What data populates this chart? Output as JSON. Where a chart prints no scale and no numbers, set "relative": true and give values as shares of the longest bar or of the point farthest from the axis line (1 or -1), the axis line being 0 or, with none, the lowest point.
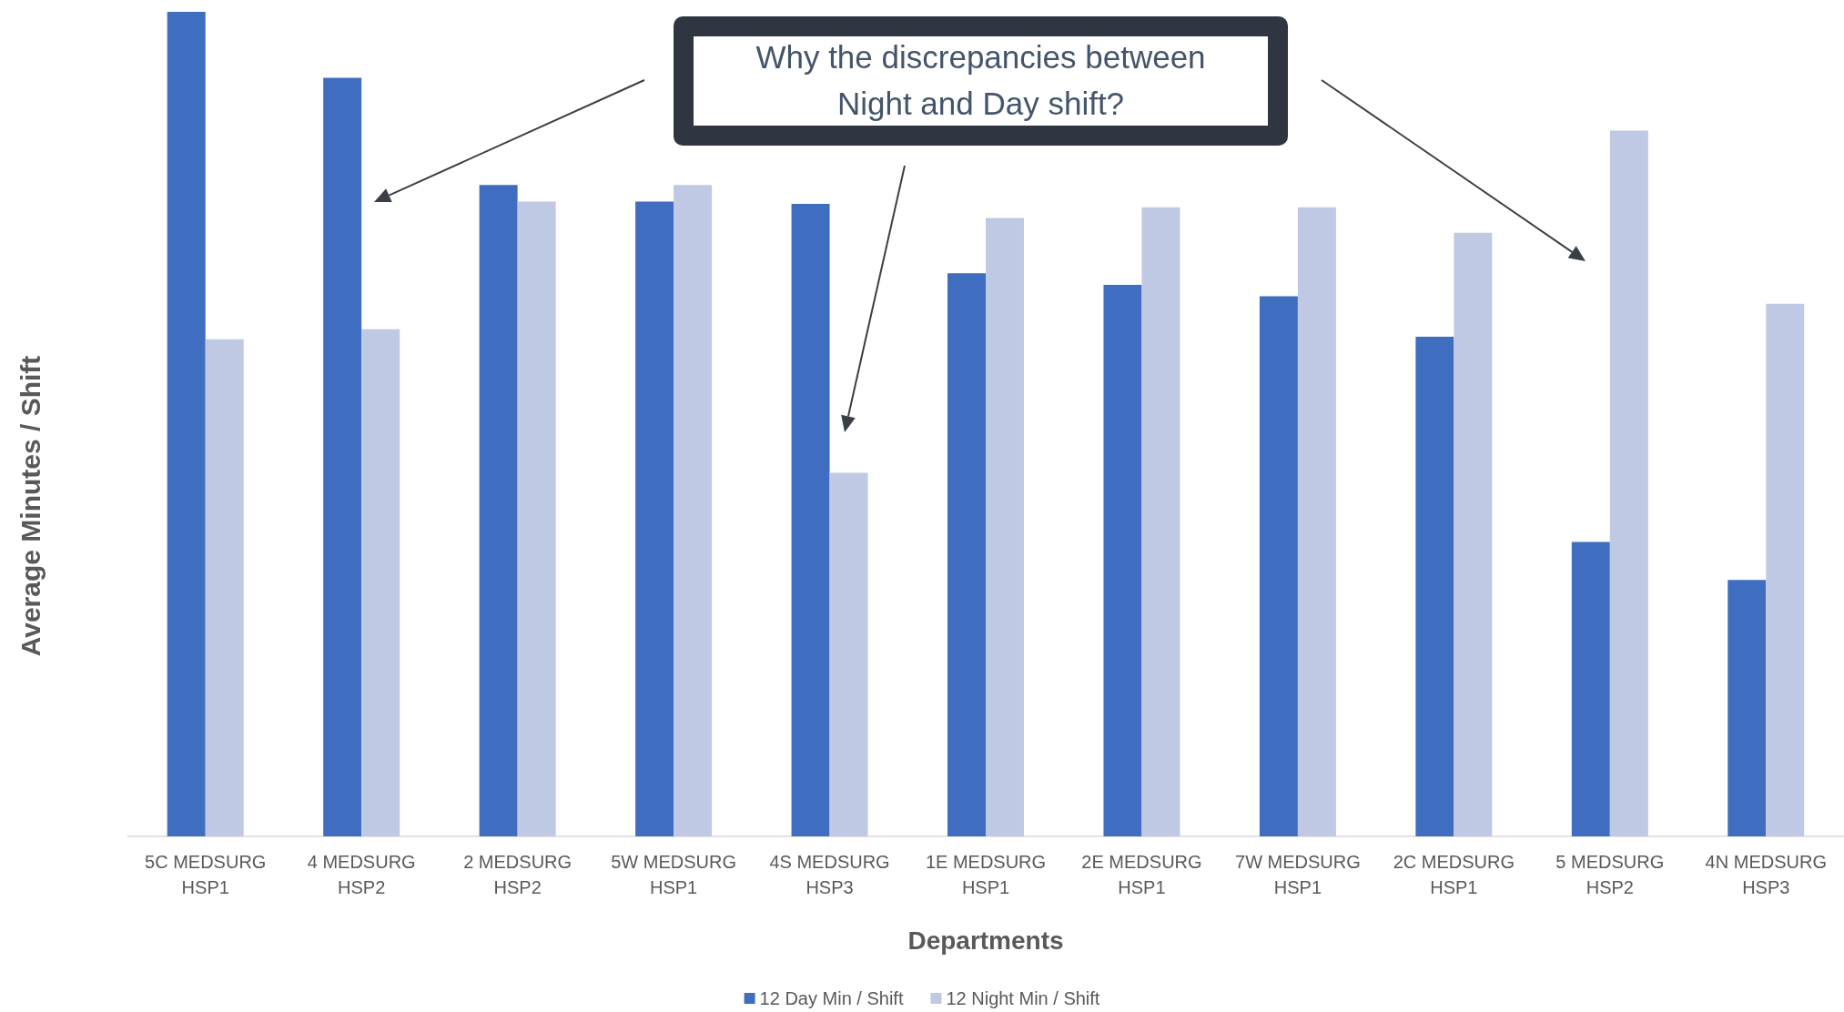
{
  "chart_data": {
    "type": "bar",
    "relative": true,
    "xlabel": "Departments",
    "ylabel": "Average Minutes / Shift",
    "categories": [
      "5C MEDSURG\nHSP1",
      "4 MEDSURG\nHSP2",
      "2 MEDSURG\nHSP2",
      "5W MEDSURG\nHSP1",
      "4S MEDSURG\nHSP3",
      "1E MEDSURG\nHSP1",
      "2E MEDSURG\nHSP1",
      "7W MEDSURG\nHSP1",
      "2C MEDSURG\nHSP1",
      "5 MEDSURG\nHSP2",
      "4N MEDSURG\nHSP3"
    ],
    "series": [
      {
        "name": "12 Day Min / Shift",
        "color": "#3f6dbf",
        "values": [
          1.0,
          0.92,
          0.79,
          0.77,
          0.767,
          0.683,
          0.669,
          0.655,
          0.606,
          0.357,
          0.311
        ]
      },
      {
        "name": "12 Night Min / Shift",
        "color": "#c0c9e4",
        "values": [
          0.603,
          0.615,
          0.77,
          0.79,
          0.441,
          0.75,
          0.763,
          0.763,
          0.732,
          0.856,
          0.646
        ]
      }
    ],
    "annotations": [
      "Why the discrepancies between\nNight and Day shift?"
    ],
    "legend": "bottom"
  }
}
